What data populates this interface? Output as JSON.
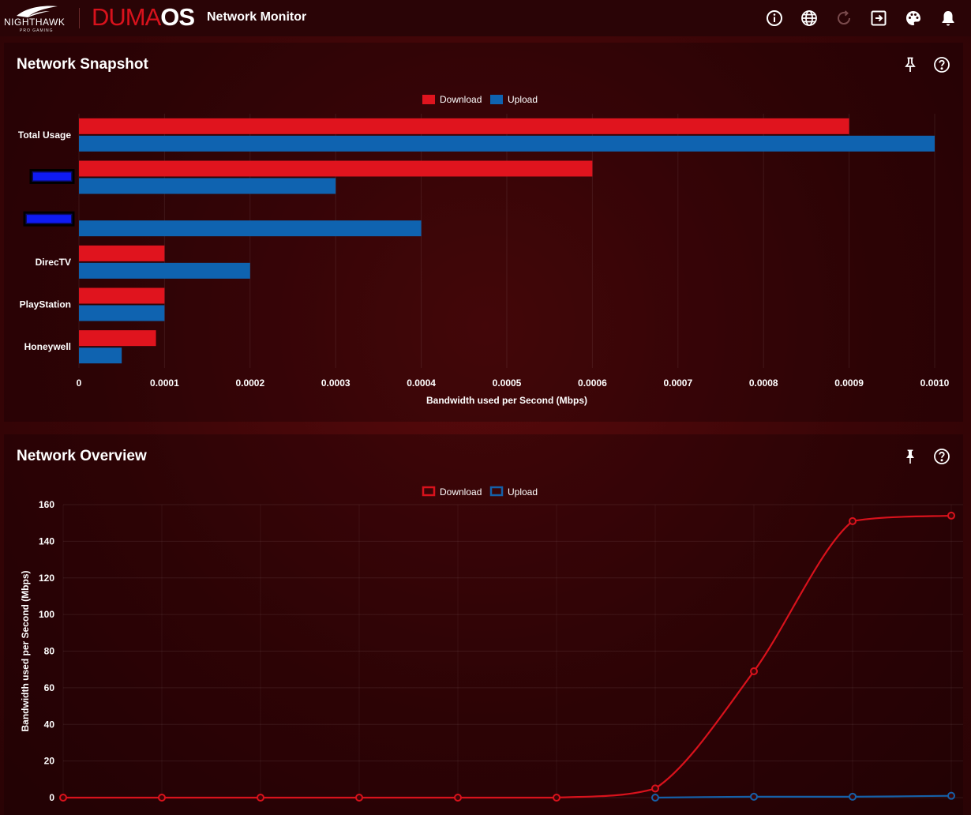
{
  "header": {
    "brand": "NIGHTHAWK",
    "brand_sub": "PRO GAMING",
    "os_name_part1": "DUMA",
    "os_name_part2": "OS",
    "app_title": "Network Monitor",
    "icons": [
      "info-icon",
      "globe-icon",
      "refresh-icon",
      "logout-icon",
      "palette-icon",
      "bell-icon"
    ]
  },
  "snapshot": {
    "title": "Network Snapshot",
    "chart_data": {
      "type": "bar",
      "orientation": "horizontal",
      "legend": [
        "Download",
        "Upload"
      ],
      "categories": [
        "Total Usage",
        "",
        "",
        "DirecTV",
        "PlayStation",
        "Honeywell"
      ],
      "series": [
        {
          "name": "Download",
          "color": "#e0141e",
          "values": [
            0.0009,
            0.0006,
            0,
            0.0001,
            0.0001,
            9e-05
          ]
        },
        {
          "name": "Upload",
          "color": "#0f63b0",
          "values": [
            0.001,
            0.0003,
            0.0004,
            0.0002,
            0.0001,
            5e-05
          ]
        }
      ],
      "xlim": [
        0,
        0.001
      ],
      "xticks": [
        "0",
        "0.0001",
        "0.0002",
        "0.0003",
        "0.0004",
        "0.0005",
        "0.0006",
        "0.0007",
        "0.0008",
        "0.0009",
        "0.0010"
      ],
      "xlabel": "Bandwidth used per Second (Mbps)",
      "redacted_labels": [
        1,
        2
      ]
    }
  },
  "overview": {
    "title": "Network Overview",
    "chart_data": {
      "type": "line",
      "legend": [
        "Download",
        "Upload"
      ],
      "x": [
        0,
        1,
        2,
        3,
        4,
        5,
        6,
        7,
        8,
        9
      ],
      "series": [
        {
          "name": "Download",
          "color": "#d8121c",
          "values": [
            0,
            0,
            0,
            0,
            0,
            0,
            5,
            69,
            151,
            154
          ],
          "marker_from": 0
        },
        {
          "name": "Upload",
          "color": "#1560a8",
          "values": [
            null,
            null,
            null,
            null,
            null,
            null,
            0,
            0.5,
            0.5,
            1
          ],
          "marker_from": 6
        }
      ],
      "ylim": [
        0,
        160
      ],
      "yticks": [
        "0",
        "20",
        "40",
        "60",
        "80",
        "100",
        "120",
        "140",
        "160"
      ],
      "ylabel": "Bandwidth used per Second (Mbps)",
      "xlabel": ""
    }
  }
}
